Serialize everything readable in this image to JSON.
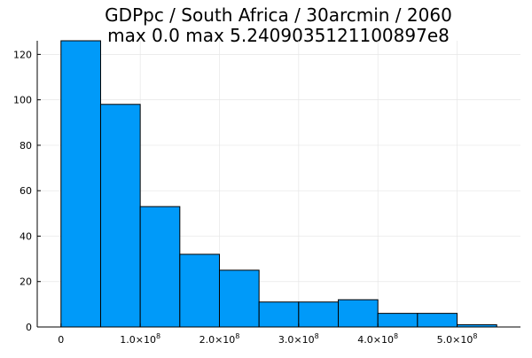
{
  "chart_data": {
    "type": "bar",
    "title_line1": "GDPpc / South Africa / 30arcmin / 2060",
    "title_line2": "max 0.0  max 5.2409035121100897e8",
    "bins": [
      {
        "x0": 0,
        "x1": 50000000.0,
        "count": 126
      },
      {
        "x0": 50000000.0,
        "x1": 100000000.0,
        "count": 98
      },
      {
        "x0": 100000000.0,
        "x1": 150000000.0,
        "count": 53
      },
      {
        "x0": 150000000.0,
        "x1": 200000000.0,
        "count": 32
      },
      {
        "x0": 200000000.0,
        "x1": 250000000.0,
        "count": 25
      },
      {
        "x0": 250000000.0,
        "x1": 300000000.0,
        "count": 11
      },
      {
        "x0": 300000000.0,
        "x1": 350000000.0,
        "count": 11
      },
      {
        "x0": 350000000.0,
        "x1": 400000000.0,
        "count": 12
      },
      {
        "x0": 400000000.0,
        "x1": 450000000.0,
        "count": 6
      },
      {
        "x0": 450000000.0,
        "x1": 500000000.0,
        "count": 6
      },
      {
        "x0": 500000000.0,
        "x1": 550000000.0,
        "count": 1
      }
    ],
    "xlim": [
      -30000000.0,
      580000000.0
    ],
    "ylim": [
      0,
      126
    ],
    "x_ticks": [
      {
        "value": 0,
        "mantissa": "0",
        "exp": ""
      },
      {
        "value": 100000000.0,
        "mantissa": "1.0×10",
        "exp": "8"
      },
      {
        "value": 200000000.0,
        "mantissa": "2.0×10",
        "exp": "8"
      },
      {
        "value": 300000000.0,
        "mantissa": "3.0×10",
        "exp": "8"
      },
      {
        "value": 400000000.0,
        "mantissa": "4.0×10",
        "exp": "8"
      },
      {
        "value": 500000000.0,
        "mantissa": "5.0×10",
        "exp": "8"
      }
    ],
    "y_ticks": [
      {
        "value": 0,
        "label": "0"
      },
      {
        "value": 20,
        "label": "20"
      },
      {
        "value": 40,
        "label": "40"
      },
      {
        "value": 60,
        "label": "60"
      },
      {
        "value": 80,
        "label": "80"
      },
      {
        "value": 100,
        "label": "100"
      },
      {
        "value": 120,
        "label": "120"
      }
    ],
    "grid": true,
    "legend": "none",
    "bar_color": "#009af9",
    "bar_edge_color": "#000000",
    "grid_color": "#e6e6e6"
  }
}
